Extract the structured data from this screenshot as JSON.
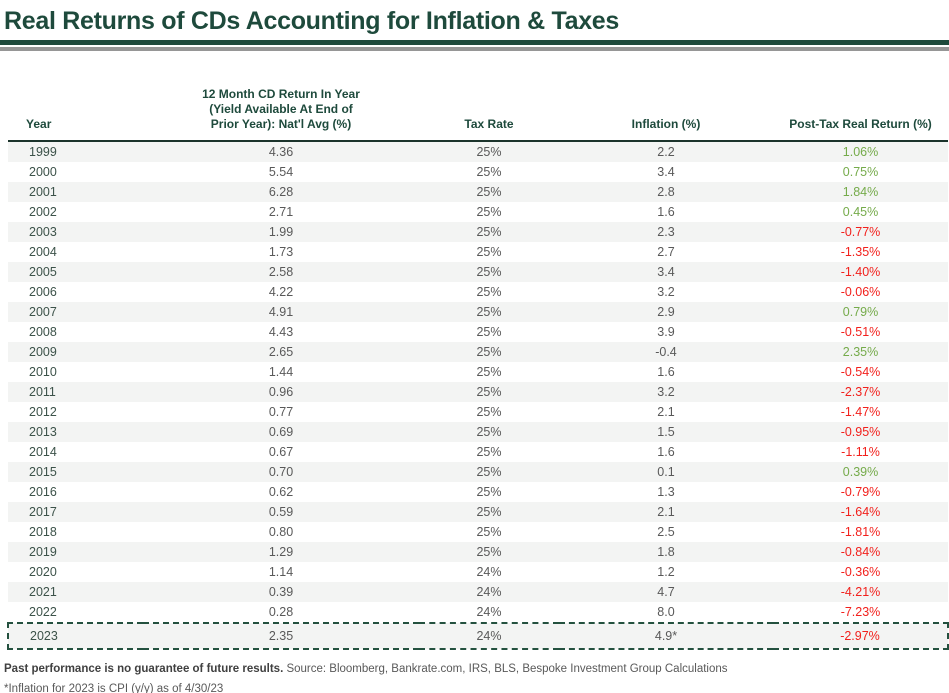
{
  "title": "Real Returns of CDs Accounting for Inflation & Taxes",
  "colors": {
    "accent_dark_green": "#1e4a3c",
    "rule_gray": "#969696",
    "positive_value": "#75ab4a",
    "negative_value": "#f2201c",
    "row_stripe": "#f3f4f3",
    "data_text": "#595959",
    "year_text": "#3c5249"
  },
  "chart_data": {
    "type": "table",
    "title": "Real Returns of CDs Accounting for Inflation & Taxes",
    "columns": [
      "Year",
      "12 Month CD Return In Year\n(Yield Available At End of\nPrior Year): Nat'l Avg (%)",
      "Tax Rate",
      "Inflation (%)",
      "Post-Tax Real Return (%)"
    ],
    "highlighted_row_year": "2023",
    "rows": [
      {
        "year": "1999",
        "cd_return": "4.36",
        "tax_rate": "25%",
        "inflation": "2.2",
        "real_return": "1.06%",
        "sign": "pos"
      },
      {
        "year": "2000",
        "cd_return": "5.54",
        "tax_rate": "25%",
        "inflation": "3.4",
        "real_return": "0.75%",
        "sign": "pos"
      },
      {
        "year": "2001",
        "cd_return": "6.28",
        "tax_rate": "25%",
        "inflation": "2.8",
        "real_return": "1.84%",
        "sign": "pos"
      },
      {
        "year": "2002",
        "cd_return": "2.71",
        "tax_rate": "25%",
        "inflation": "1.6",
        "real_return": "0.45%",
        "sign": "pos"
      },
      {
        "year": "2003",
        "cd_return": "1.99",
        "tax_rate": "25%",
        "inflation": "2.3",
        "real_return": "-0.77%",
        "sign": "neg"
      },
      {
        "year": "2004",
        "cd_return": "1.73",
        "tax_rate": "25%",
        "inflation": "2.7",
        "real_return": "-1.35%",
        "sign": "neg"
      },
      {
        "year": "2005",
        "cd_return": "2.58",
        "tax_rate": "25%",
        "inflation": "3.4",
        "real_return": "-1.40%",
        "sign": "neg"
      },
      {
        "year": "2006",
        "cd_return": "4.22",
        "tax_rate": "25%",
        "inflation": "3.2",
        "real_return": "-0.06%",
        "sign": "neg"
      },
      {
        "year": "2007",
        "cd_return": "4.91",
        "tax_rate": "25%",
        "inflation": "2.9",
        "real_return": "0.79%",
        "sign": "pos"
      },
      {
        "year": "2008",
        "cd_return": "4.43",
        "tax_rate": "25%",
        "inflation": "3.9",
        "real_return": "-0.51%",
        "sign": "neg"
      },
      {
        "year": "2009",
        "cd_return": "2.65",
        "tax_rate": "25%",
        "inflation": "-0.4",
        "real_return": "2.35%",
        "sign": "pos"
      },
      {
        "year": "2010",
        "cd_return": "1.44",
        "tax_rate": "25%",
        "inflation": "1.6",
        "real_return": "-0.54%",
        "sign": "neg"
      },
      {
        "year": "2011",
        "cd_return": "0.96",
        "tax_rate": "25%",
        "inflation": "3.2",
        "real_return": "-2.37%",
        "sign": "neg"
      },
      {
        "year": "2012",
        "cd_return": "0.77",
        "tax_rate": "25%",
        "inflation": "2.1",
        "real_return": "-1.47%",
        "sign": "neg"
      },
      {
        "year": "2013",
        "cd_return": "0.69",
        "tax_rate": "25%",
        "inflation": "1.5",
        "real_return": "-0.95%",
        "sign": "neg"
      },
      {
        "year": "2014",
        "cd_return": "0.67",
        "tax_rate": "25%",
        "inflation": "1.6",
        "real_return": "-1.11%",
        "sign": "neg"
      },
      {
        "year": "2015",
        "cd_return": "0.70",
        "tax_rate": "25%",
        "inflation": "0.1",
        "real_return": "0.39%",
        "sign": "pos"
      },
      {
        "year": "2016",
        "cd_return": "0.62",
        "tax_rate": "25%",
        "inflation": "1.3",
        "real_return": "-0.79%",
        "sign": "neg"
      },
      {
        "year": "2017",
        "cd_return": "0.59",
        "tax_rate": "25%",
        "inflation": "2.1",
        "real_return": "-1.64%",
        "sign": "neg"
      },
      {
        "year": "2018",
        "cd_return": "0.80",
        "tax_rate": "25%",
        "inflation": "2.5",
        "real_return": "-1.81%",
        "sign": "neg"
      },
      {
        "year": "2019",
        "cd_return": "1.29",
        "tax_rate": "25%",
        "inflation": "1.8",
        "real_return": "-0.84%",
        "sign": "neg"
      },
      {
        "year": "2020",
        "cd_return": "1.14",
        "tax_rate": "24%",
        "inflation": "1.2",
        "real_return": "-0.36%",
        "sign": "neg"
      },
      {
        "year": "2021",
        "cd_return": "0.39",
        "tax_rate": "24%",
        "inflation": "4.7",
        "real_return": "-4.21%",
        "sign": "neg"
      },
      {
        "year": "2022",
        "cd_return": "0.28",
        "tax_rate": "24%",
        "inflation": "8.0",
        "real_return": "-7.23%",
        "sign": "neg"
      },
      {
        "year": "2023",
        "cd_return": "2.35",
        "tax_rate": "24%",
        "inflation": "4.9*",
        "real_return": "-2.97%",
        "sign": "neg"
      }
    ]
  },
  "footer": {
    "disclaimer_bold": "Past performance is no guarantee of future results.",
    "source": " Source: Bloomberg, Bankrate.com, IRS, BLS, Bespoke Investment Group Calculations",
    "footnote": "*Inflation for 2023 is CPI (y/y) as of 4/30/23"
  }
}
